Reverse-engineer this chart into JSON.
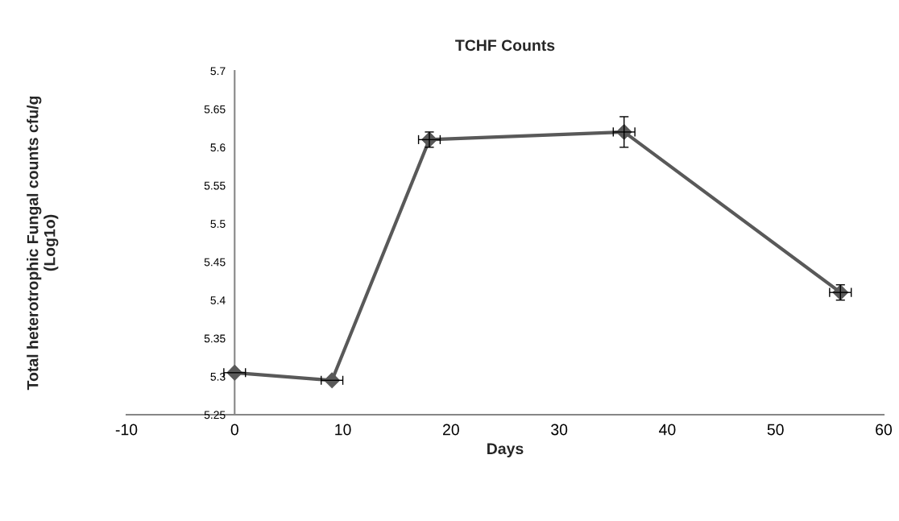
{
  "chart_data": {
    "type": "line",
    "title": "TCHF Counts",
    "xlabel": "Days",
    "ylabel": "Total heterotrophic Fungal counts cfu/g\n(Log1o)",
    "x": [
      0,
      9,
      18,
      36,
      56
    ],
    "series": [
      {
        "color": "#595959",
        "values": [
          5.305,
          5.295,
          5.61,
          5.62,
          5.41
        ],
        "errors": [
          null,
          null,
          0.01,
          0.02,
          0.01
        ],
        "xerrors": [
          1,
          1,
          1,
          1,
          1
        ]
      }
    ],
    "xlim": [
      -10,
      60
    ],
    "xticks": [
      -10,
      0,
      10,
      20,
      30,
      40,
      50,
      60
    ],
    "ylim": [
      5.25,
      5.7
    ],
    "yticks": [
      5.25,
      5.3,
      5.35,
      5.4,
      5.45,
      5.5,
      5.55,
      5.6,
      5.65,
      5.7
    ],
    "marker": "diamond",
    "line_style": "solid",
    "grid": false,
    "legend": false
  }
}
